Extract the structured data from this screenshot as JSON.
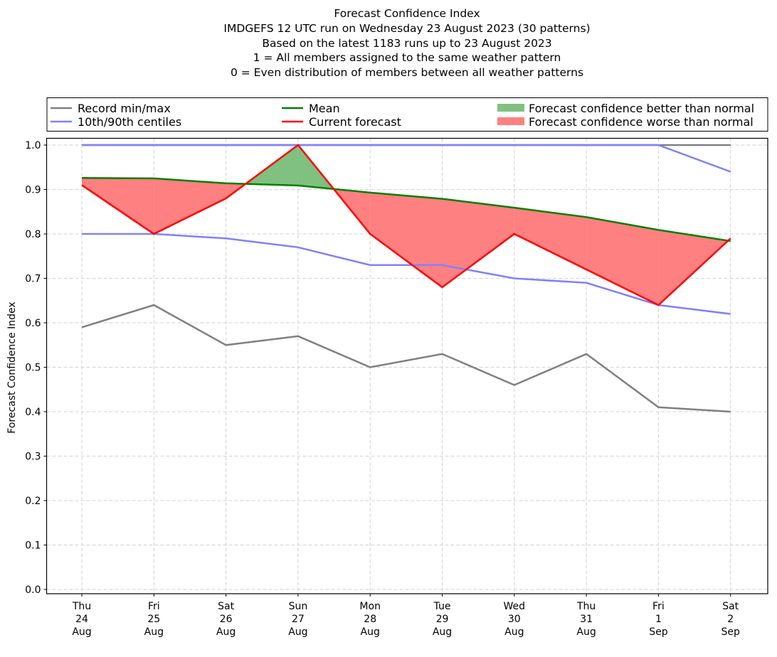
{
  "chart_data": {
    "type": "line",
    "title_lines": [
      "Forecast Confidence Index",
      "IMDGEFS 12 UTC run on Wednesday 23 August 2023 (30 patterns)",
      "Based on the latest 1183 runs up to 23 August 2023",
      "1 = All members assigned to the same weather pattern",
      "0 = Even distribution of members between all weather patterns"
    ],
    "xlabel": "",
    "ylabel": "Forecast Confidence Index",
    "ylim": [
      0.0,
      1.0
    ],
    "yticks": [
      "0.0",
      "0.1",
      "0.2",
      "0.3",
      "0.4",
      "0.5",
      "0.6",
      "0.7",
      "0.8",
      "0.9",
      "1.0"
    ],
    "categories": [
      [
        "Thu",
        "24",
        "Aug"
      ],
      [
        "Fri",
        "25",
        "Aug"
      ],
      [
        "Sat",
        "26",
        "Aug"
      ],
      [
        "Sun",
        "27",
        "Aug"
      ],
      [
        "Mon",
        "28",
        "Aug"
      ],
      [
        "Tue",
        "29",
        "Aug"
      ],
      [
        "Wed",
        "30",
        "Aug"
      ],
      [
        "Thu",
        "31",
        "Aug"
      ],
      [
        "Fri",
        "1",
        "Sep"
      ],
      [
        "Sat",
        "2",
        "Sep"
      ]
    ],
    "grid": true,
    "legend_position": "top",
    "series": [
      {
        "name": "Record min",
        "legend": "Record min/max",
        "color": "#808080",
        "values": [
          0.59,
          0.64,
          0.55,
          0.57,
          0.5,
          0.53,
          0.46,
          0.53,
          0.41,
          0.4
        ]
      },
      {
        "name": "Record max",
        "legend": "Record min/max",
        "color": "#808080",
        "values": [
          1.0,
          1.0,
          1.0,
          1.0,
          1.0,
          1.0,
          1.0,
          1.0,
          1.0,
          1.0
        ]
      },
      {
        "name": "10th centile",
        "legend": "10th/90th centiles",
        "color": "#8080ff",
        "values": [
          0.8,
          0.8,
          0.79,
          0.77,
          0.73,
          0.73,
          0.7,
          0.69,
          0.64,
          0.62
        ]
      },
      {
        "name": "90th centile",
        "legend": "10th/90th centiles",
        "color": "#8080ff",
        "values": [
          1.0,
          1.0,
          1.0,
          1.0,
          1.0,
          1.0,
          1.0,
          1.0,
          1.0,
          0.94
        ]
      },
      {
        "name": "Mean",
        "legend": "Mean",
        "color": "#008000",
        "values": [
          0.926,
          0.925,
          0.914,
          0.909,
          0.893,
          0.879,
          0.859,
          0.838,
          0.809,
          0.784
        ]
      },
      {
        "name": "Current forecast",
        "legend": "Current forecast",
        "color": "#ff0000",
        "values": [
          0.91,
          0.8,
          0.88,
          1.0,
          0.8,
          0.68,
          0.8,
          0.72,
          0.64,
          0.79
        ]
      }
    ],
    "fills": [
      {
        "legend": "Forecast confidence better than normal",
        "color": "#80c080",
        "condition": "current > mean"
      },
      {
        "legend": "Forecast confidence worse than normal",
        "color": "#ff8080",
        "condition": "current < mean"
      }
    ],
    "legend_entries": [
      {
        "label": "Record min/max",
        "kind": "line",
        "color": "#808080"
      },
      {
        "label": "10th/90th centiles",
        "kind": "line",
        "color": "#8080ff"
      },
      {
        "label": "Mean",
        "kind": "line",
        "color": "#008000"
      },
      {
        "label": "Current forecast",
        "kind": "line",
        "color": "#ff0000"
      },
      {
        "label": "Forecast confidence better than normal",
        "kind": "patch",
        "color": "#80c080"
      },
      {
        "label": "Forecast confidence worse than normal",
        "kind": "patch",
        "color": "#ff8080"
      }
    ]
  }
}
